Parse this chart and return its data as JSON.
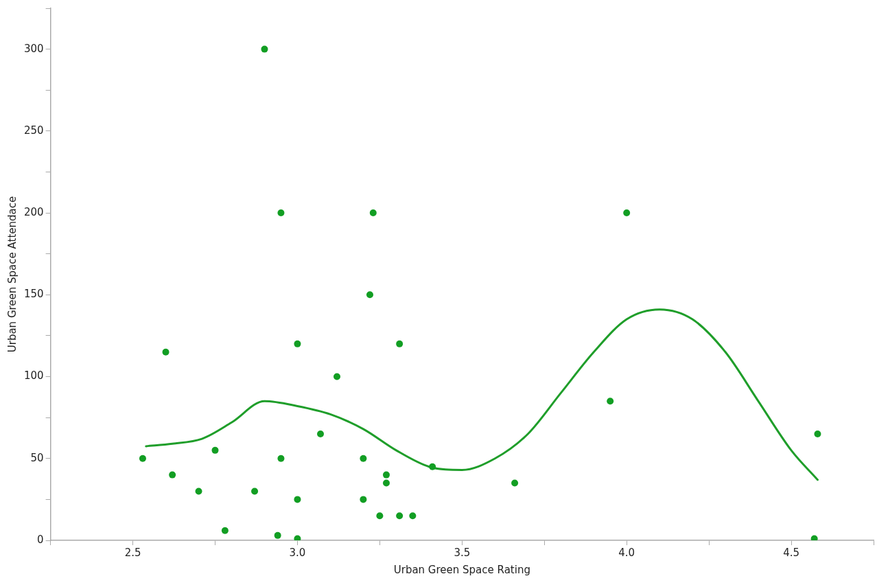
{
  "chart_data": {
    "type": "scatter",
    "xlabel": "Urban Green Space Rating",
    "ylabel": "Urban Green Space Attendace",
    "xlim": [
      2.25,
      4.75
    ],
    "ylim": [
      0,
      325
    ],
    "xticks": [
      {
        "value": 2.25,
        "label": null
      },
      {
        "value": 2.5,
        "label": "2.5"
      },
      {
        "value": 2.75,
        "label": null
      },
      {
        "value": 3.0,
        "label": "3.0"
      },
      {
        "value": 3.25,
        "label": null
      },
      {
        "value": 3.5,
        "label": "3.5"
      },
      {
        "value": 3.75,
        "label": null
      },
      {
        "value": 4.0,
        "label": "4.0"
      },
      {
        "value": 4.25,
        "label": null
      },
      {
        "value": 4.5,
        "label": "4.5"
      },
      {
        "value": 4.75,
        "label": null
      }
    ],
    "yticks": [
      0,
      {
        "value": 25,
        "label": null
      },
      50,
      {
        "value": 75,
        "label": null
      },
      100,
      {
        "value": 125,
        "label": null
      },
      150,
      {
        "value": 175,
        "label": null
      },
      200,
      {
        "value": 225,
        "label": null
      },
      250,
      {
        "value": 275,
        "label": null
      },
      300,
      {
        "value": 325,
        "label": null
      }
    ],
    "grid": false,
    "legend": false,
    "series": [
      {
        "type": "scatter",
        "marker": "circle",
        "color": "#129e23",
        "x": [
          2.53,
          2.6,
          2.62,
          2.7,
          2.75,
          2.78,
          2.87,
          2.9,
          2.94,
          2.95,
          2.95,
          3.0,
          3.0,
          3.0,
          3.07,
          3.12,
          3.2,
          3.2,
          3.22,
          3.23,
          3.25,
          3.27,
          3.27,
          3.31,
          3.31,
          3.35,
          3.41,
          3.66,
          3.95,
          4.0,
          4.57,
          4.58
        ],
        "values": [
          50,
          115,
          40,
          30,
          55,
          6,
          30,
          300,
          3,
          200,
          50,
          25,
          1,
          120,
          65,
          100,
          50,
          25,
          150,
          200,
          15,
          40,
          35,
          120,
          15,
          15,
          45,
          35,
          85,
          200,
          1,
          65
        ]
      },
      {
        "type": "line",
        "marker": "none",
        "line_style": "solid",
        "color": "#1f9e2a",
        "x": [
          2.54,
          2.62,
          2.71,
          2.8,
          2.9,
          3.0,
          3.1,
          3.2,
          3.3,
          3.4,
          3.5,
          3.6,
          3.7,
          3.8,
          3.9,
          4.0,
          4.1,
          4.2,
          4.3,
          4.4,
          4.5,
          4.58
        ],
        "values": [
          57.5,
          59,
          62,
          72,
          85,
          82,
          77,
          68,
          55,
          45,
          43,
          50,
          65,
          90,
          115,
          135,
          141,
          135,
          115,
          85,
          55,
          37
        ]
      }
    ]
  }
}
